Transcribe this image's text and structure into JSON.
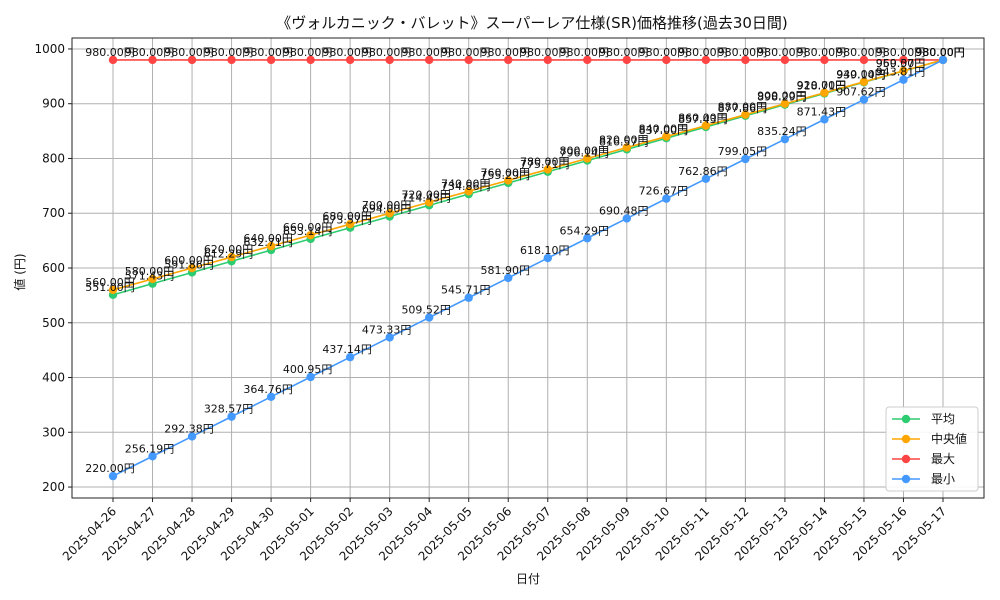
{
  "chart_data": {
    "type": "line",
    "title": "《ヴォルカニック・バレット》スーパーレア仕様(SR)価格推移(過去30日間)",
    "xlabel": "日付",
    "ylabel": "値 (円)",
    "ylim": [
      180,
      1020
    ],
    "yticks": [
      200,
      300,
      400,
      500,
      600,
      700,
      800,
      900,
      1000
    ],
    "grid": true,
    "legend_position": "lower-right",
    "value_suffix": "円",
    "categories": [
      "2025-04-26",
      "2025-04-27",
      "2025-04-28",
      "2025-04-29",
      "2025-04-30",
      "2025-05-01",
      "2025-05-02",
      "2025-05-03",
      "2025-05-04",
      "2025-05-05",
      "2025-05-06",
      "2025-05-07",
      "2025-05-08",
      "2025-05-09",
      "2025-05-10",
      "2025-05-11",
      "2025-05-12",
      "2025-05-13",
      "2025-05-14",
      "2025-05-15",
      "2025-05-16",
      "2025-05-17"
    ],
    "series": [
      {
        "name": "平均",
        "color": "#2ecc71",
        "values": [
          551.0,
          571.43,
          591.86,
          612.29,
          632.71,
          653.14,
          673.57,
          694.0,
          714.43,
          734.86,
          755.29,
          775.71,
          796.14,
          816.57,
          837.0,
          857.43,
          877.86,
          898.29,
          918.71,
          939.14,
          959.57,
          980.0
        ]
      },
      {
        "name": "中央値",
        "color": "#ffa500",
        "values": [
          560.0,
          580.0,
          600.0,
          620.0,
          640.0,
          660.0,
          680.0,
          700.0,
          720.0,
          740.0,
          760.0,
          780.0,
          800.0,
          820.0,
          840.0,
          860.0,
          880.0,
          900.0,
          920.0,
          940.0,
          960.0,
          980.0
        ]
      },
      {
        "name": "最大",
        "color": "#ff4444",
        "values": [
          980.0,
          980.0,
          980.0,
          980.0,
          980.0,
          980.0,
          980.0,
          980.0,
          980.0,
          980.0,
          980.0,
          980.0,
          980.0,
          980.0,
          980.0,
          980.0,
          980.0,
          980.0,
          980.0,
          980.0,
          980.0,
          980.0
        ]
      },
      {
        "name": "最小",
        "color": "#4499ff",
        "values": [
          220.0,
          256.19,
          292.38,
          328.57,
          364.76,
          400.95,
          437.14,
          473.33,
          509.52,
          545.71,
          581.9,
          618.1,
          654.29,
          690.48,
          726.67,
          762.86,
          799.05,
          835.24,
          871.43,
          907.62,
          943.81,
          980.0
        ]
      }
    ]
  }
}
